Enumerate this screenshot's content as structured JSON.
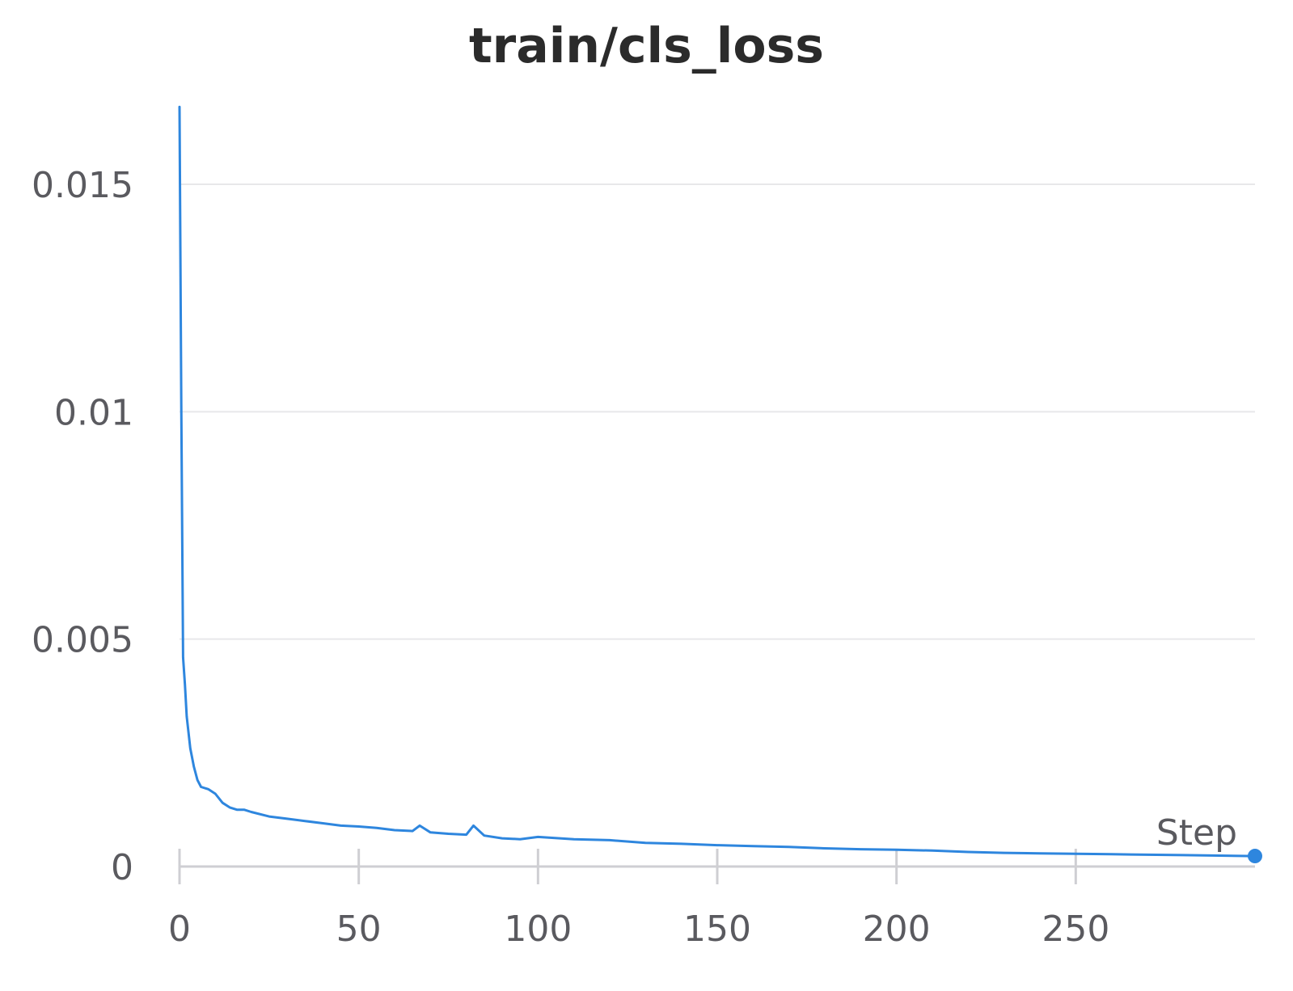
{
  "chart_data": {
    "type": "line",
    "title": "train/cls_loss",
    "xlabel": "Step",
    "ylabel": "",
    "xlim": [
      0,
      300
    ],
    "ylim": [
      0,
      0.017
    ],
    "x_ticks": [
      0,
      50,
      100,
      150,
      200,
      250
    ],
    "x_tick_labels": [
      "0",
      "50",
      "100",
      "150",
      "200",
      "250"
    ],
    "y_ticks": [
      0,
      0.005,
      0.01,
      0.015
    ],
    "y_tick_labels": [
      "0",
      "0.005",
      "0.01",
      "0.015"
    ],
    "grid": "horizontal",
    "legend": "none",
    "colors": {
      "line": "#2e86de",
      "grid": "#e8e8ea",
      "axis": "#cfcfd3",
      "text": "#5a5a5f",
      "title": "#2b2b2b"
    },
    "series": [
      {
        "x": [
          0,
          0.5,
          1,
          1.5,
          2,
          3,
          4,
          5,
          6,
          8,
          10,
          12,
          14,
          16,
          18,
          20,
          25,
          30,
          35,
          40,
          45,
          50,
          55,
          60,
          65,
          67,
          70,
          75,
          80,
          82,
          85,
          90,
          95,
          100,
          110,
          120,
          130,
          140,
          150,
          160,
          170,
          180,
          190,
          200,
          210,
          220,
          230,
          240,
          250,
          260,
          270,
          280,
          290,
          300
        ],
        "y": [
          0.0167,
          0.0101,
          0.0046,
          0.004,
          0.0033,
          0.0026,
          0.0022,
          0.0019,
          0.00175,
          0.0017,
          0.0016,
          0.0014,
          0.0013,
          0.00125,
          0.00125,
          0.0012,
          0.0011,
          0.00105,
          0.001,
          0.00095,
          0.0009,
          0.00088,
          0.00085,
          0.0008,
          0.00078,
          0.0009,
          0.00075,
          0.00072,
          0.0007,
          0.0009,
          0.00068,
          0.00062,
          0.0006,
          0.00065,
          0.0006,
          0.00058,
          0.00052,
          0.0005,
          0.00047,
          0.00045,
          0.00043,
          0.0004,
          0.00038,
          0.00037,
          0.00035,
          0.00032,
          0.0003,
          0.00029,
          0.00028,
          0.00027,
          0.00026,
          0.00025,
          0.00024,
          0.00023
        ]
      }
    ]
  }
}
